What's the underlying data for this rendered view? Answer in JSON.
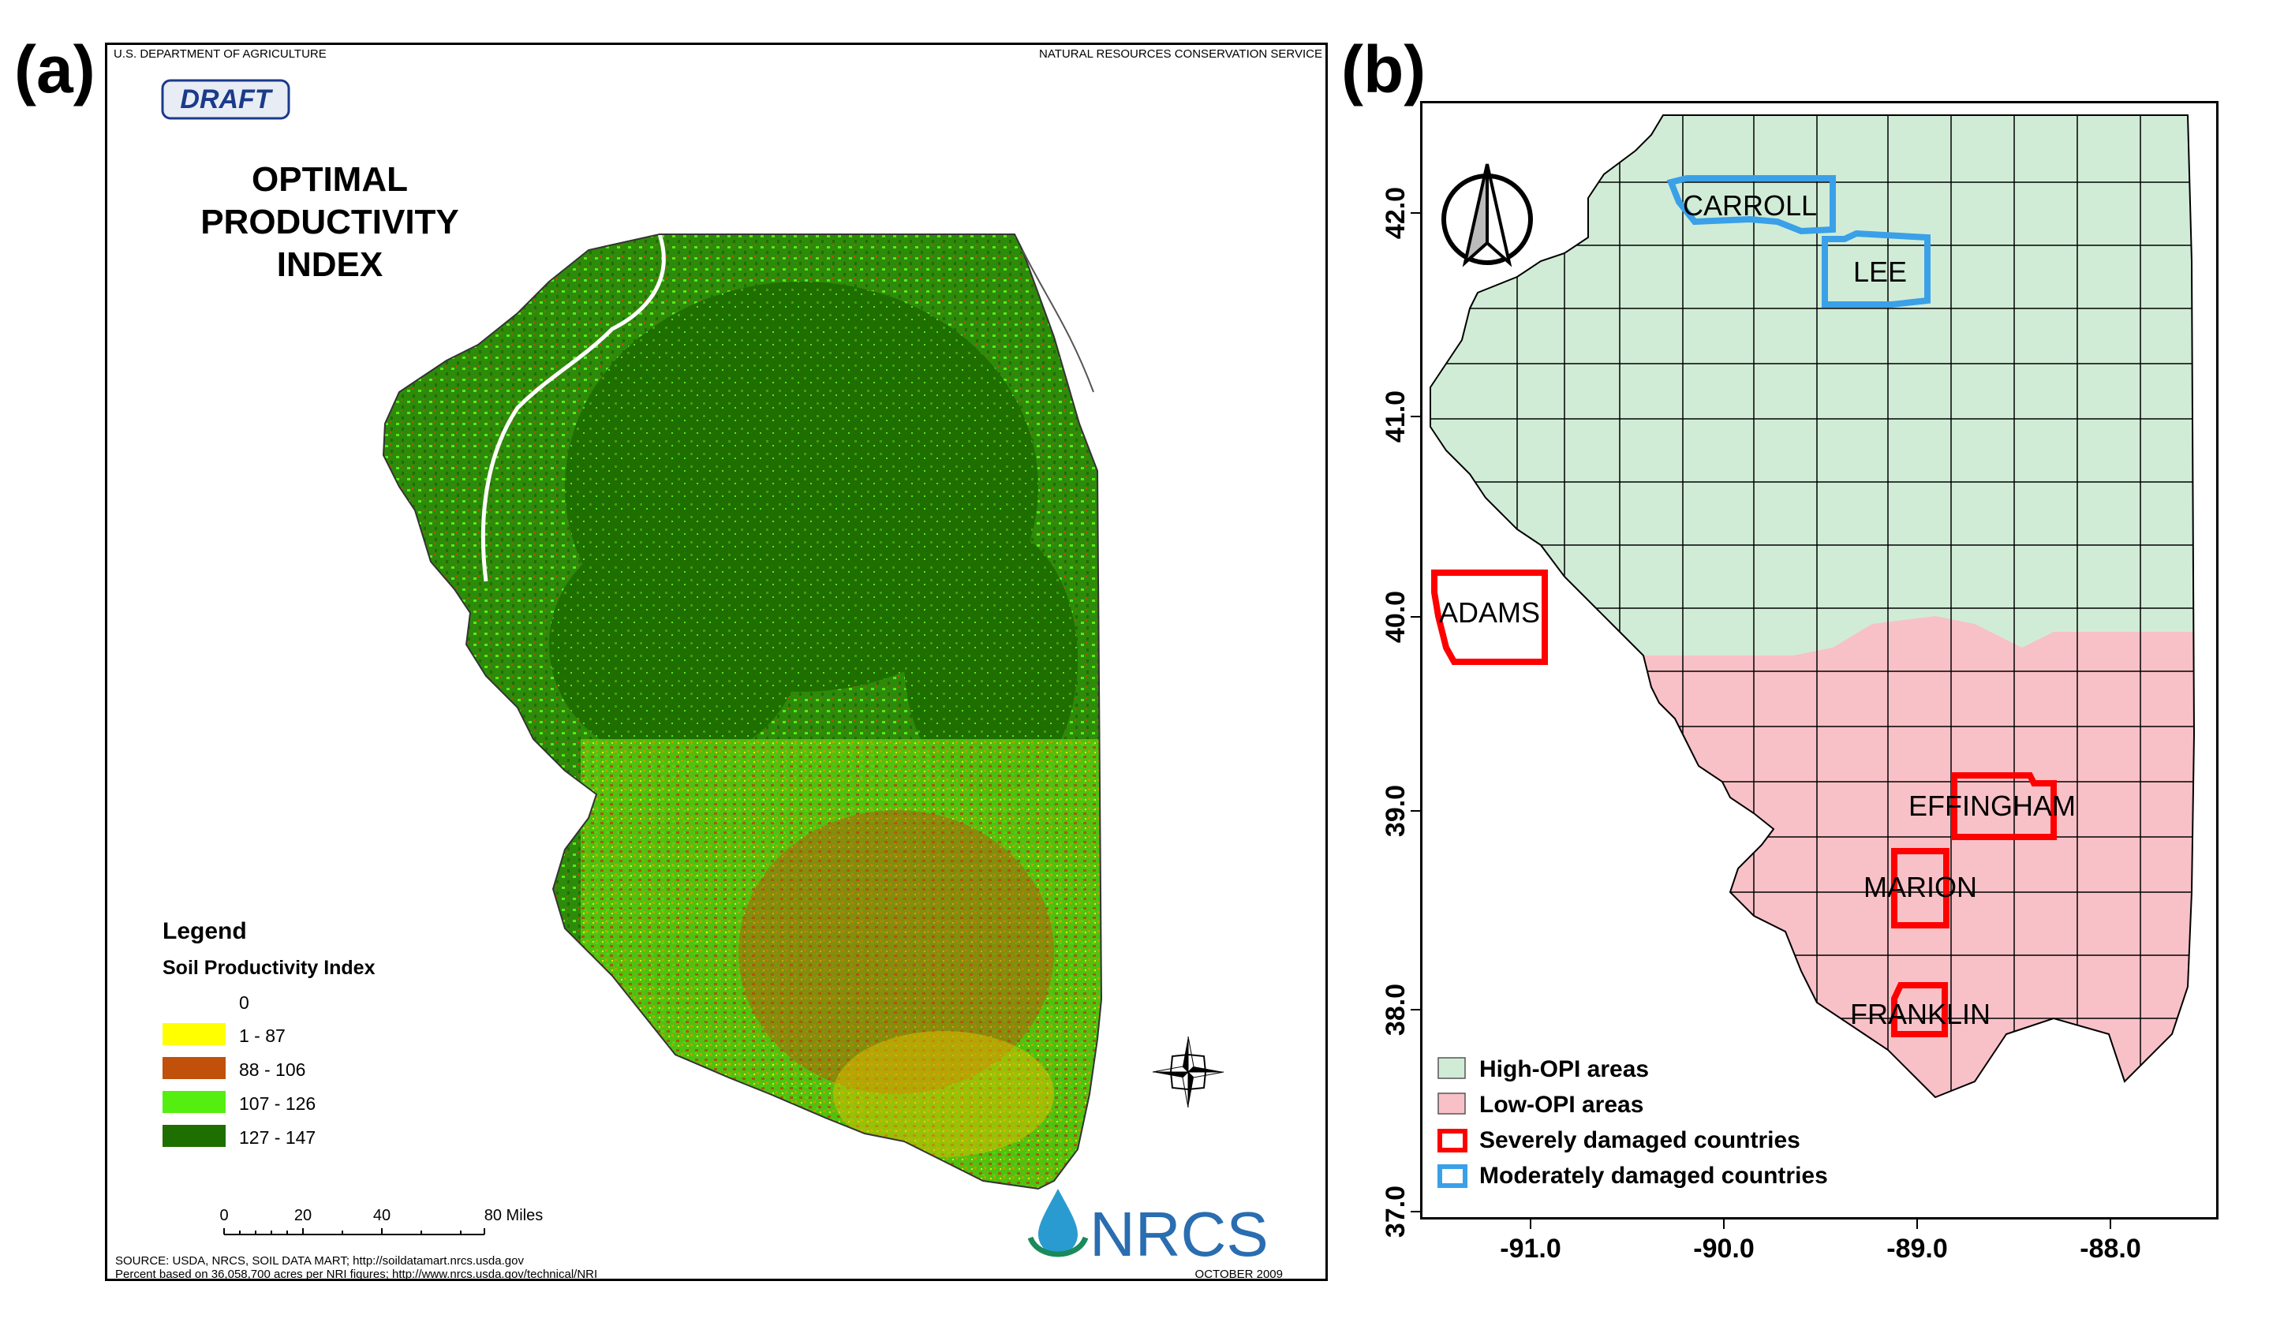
{
  "panel_a_label": "(a)",
  "panel_b_label": "(b)",
  "map_a": {
    "header_left": "U.S. DEPARTMENT OF AGRICULTURE",
    "header_right": "NATURAL RESOURCES CONSERVATION SERVICE",
    "draft_badge": "DRAFT",
    "title_lines": [
      "OPTIMAL",
      "PRODUCTIVITY",
      "INDEX"
    ],
    "legend": {
      "title": "Legend",
      "subtitle": "Soil Productivity Index",
      "items": [
        {
          "label": "0",
          "color": "#ffffff"
        },
        {
          "label": "1 - 87",
          "color": "#ffff00"
        },
        {
          "label": "88 - 106",
          "color": "#c0500a"
        },
        {
          "label": "107 - 126",
          "color": "#55ee11"
        },
        {
          "label": "127 - 147",
          "color": "#1f6e00"
        }
      ]
    },
    "scale_bar": {
      "ticks": [
        "0",
        "20",
        "40",
        "80 Miles"
      ]
    },
    "logo_text": "NRCS",
    "source_line1": "SOURCE: USDA, NRCS, SOIL DATA MART; http://soildatamart.nrcs.usda.gov",
    "source_line2": "Percent based on 36,058,700 acres per NRI figures; http://www.nrcs.usda.gov/technical/NRI",
    "date": "OCTOBER 2009"
  },
  "map_b": {
    "y_ticks": [
      "42.0",
      "41.0",
      "40.0",
      "39.0",
      "38.0",
      "37.0"
    ],
    "x_ticks": [
      "-91.0",
      "-90.0",
      "-89.0",
      "-88.0"
    ],
    "counties": [
      {
        "name": "CARROLL",
        "category": "moderate"
      },
      {
        "name": "LEE",
        "category": "moderate"
      },
      {
        "name": "ADAMS",
        "category": "severe"
      },
      {
        "name": "EFFINGHAM",
        "category": "severe"
      },
      {
        "name": "MARION",
        "category": "severe"
      },
      {
        "name": "FRANKLIN",
        "category": "severe"
      }
    ],
    "legend": [
      {
        "label": "High-OPI areas",
        "color": "#d1ecd6"
      },
      {
        "label": "Low-OPI areas",
        "color": "#f8c1c7"
      },
      {
        "label": "Severely damaged countries",
        "color": "#ff0000"
      },
      {
        "label": "Moderately damaged countries",
        "color": "#3aa0e8"
      }
    ]
  }
}
